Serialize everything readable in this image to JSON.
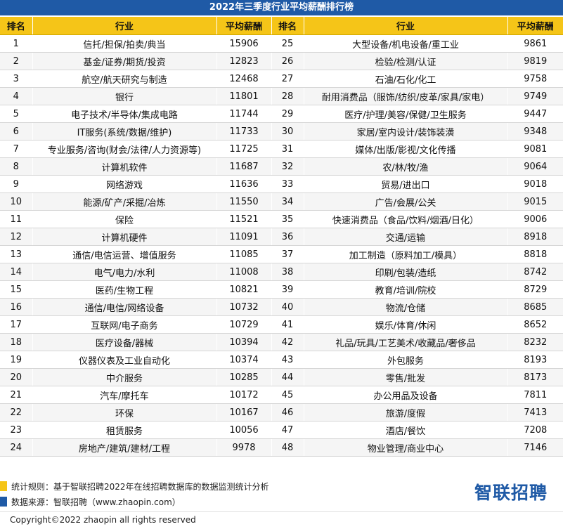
{
  "title": "2022年三季度行业平均薪酬排行榜",
  "headers": {
    "rank": "排名",
    "industry": "行业",
    "salary": "平均薪酬"
  },
  "left": [
    {
      "rank": "1",
      "industry": "信托/担保/拍卖/典当",
      "salary": "15906"
    },
    {
      "rank": "2",
      "industry": "基金/证券/期货/投资",
      "salary": "12823"
    },
    {
      "rank": "3",
      "industry": "航空/航天研究与制造",
      "salary": "12468"
    },
    {
      "rank": "4",
      "industry": "银行",
      "salary": "11801"
    },
    {
      "rank": "5",
      "industry": "电子技术/半导体/集成电路",
      "salary": "11744"
    },
    {
      "rank": "6",
      "industry": "IT服务(系统/数据/维护)",
      "salary": "11733"
    },
    {
      "rank": "7",
      "industry": "专业服务/咨询(财会/法律/人力资源等)",
      "salary": "11725"
    },
    {
      "rank": "8",
      "industry": "计算机软件",
      "salary": "11687"
    },
    {
      "rank": "9",
      "industry": "网络游戏",
      "salary": "11636"
    },
    {
      "rank": "10",
      "industry": "能源/矿产/采掘/冶炼",
      "salary": "11550"
    },
    {
      "rank": "11",
      "industry": "保险",
      "salary": "11521"
    },
    {
      "rank": "12",
      "industry": "计算机硬件",
      "salary": "11091"
    },
    {
      "rank": "13",
      "industry": "通信/电信运营、增值服务",
      "salary": "11085"
    },
    {
      "rank": "14",
      "industry": "电气/电力/水利",
      "salary": "11008"
    },
    {
      "rank": "15",
      "industry": "医药/生物工程",
      "salary": "10821"
    },
    {
      "rank": "16",
      "industry": "通信/电信/网络设备",
      "salary": "10732"
    },
    {
      "rank": "17",
      "industry": "互联网/电子商务",
      "salary": "10729"
    },
    {
      "rank": "18",
      "industry": "医疗设备/器械",
      "salary": "10394"
    },
    {
      "rank": "19",
      "industry": "仪器仪表及工业自动化",
      "salary": "10374"
    },
    {
      "rank": "20",
      "industry": "中介服务",
      "salary": "10285"
    },
    {
      "rank": "21",
      "industry": "汽车/摩托车",
      "salary": "10172"
    },
    {
      "rank": "22",
      "industry": "环保",
      "salary": "10167"
    },
    {
      "rank": "23",
      "industry": "租赁服务",
      "salary": "10056"
    },
    {
      "rank": "24",
      "industry": "房地产/建筑/建材/工程",
      "salary": "9978"
    }
  ],
  "right": [
    {
      "rank": "25",
      "industry": "大型设备/机电设备/重工业",
      "salary": "9861"
    },
    {
      "rank": "26",
      "industry": "检验/检测/认证",
      "salary": "9819"
    },
    {
      "rank": "27",
      "industry": "石油/石化/化工",
      "salary": "9758"
    },
    {
      "rank": "28",
      "industry": "耐用消费品（服饰/纺织/皮革/家具/家电）",
      "salary": "9749"
    },
    {
      "rank": "29",
      "industry": "医疗/护理/美容/保健/卫生服务",
      "salary": "9447"
    },
    {
      "rank": "30",
      "industry": "家居/室内设计/装饰装潢",
      "salary": "9348"
    },
    {
      "rank": "31",
      "industry": "媒体/出版/影视/文化传播",
      "salary": "9081"
    },
    {
      "rank": "32",
      "industry": "农/林/牧/渔",
      "salary": "9064"
    },
    {
      "rank": "33",
      "industry": "贸易/进出口",
      "salary": "9018"
    },
    {
      "rank": "34",
      "industry": "广告/会展/公关",
      "salary": "9015"
    },
    {
      "rank": "35",
      "industry": "快速消费品（食品/饮料/烟酒/日化）",
      "salary": "9006"
    },
    {
      "rank": "36",
      "industry": "交通/运输",
      "salary": "8918"
    },
    {
      "rank": "37",
      "industry": "加工制造（原料加工/模具）",
      "salary": "8818"
    },
    {
      "rank": "38",
      "industry": "印刷/包装/造纸",
      "salary": "8742"
    },
    {
      "rank": "39",
      "industry": "教育/培训/院校",
      "salary": "8729"
    },
    {
      "rank": "40",
      "industry": "物流/仓储",
      "salary": "8685"
    },
    {
      "rank": "41",
      "industry": "娱乐/体育/休闲",
      "salary": "8652"
    },
    {
      "rank": "42",
      "industry": "礼品/玩具/工艺美术/收藏品/奢侈品",
      "salary": "8232"
    },
    {
      "rank": "43",
      "industry": "外包服务",
      "salary": "8193"
    },
    {
      "rank": "44",
      "industry": "零售/批发",
      "salary": "8173"
    },
    {
      "rank": "45",
      "industry": "办公用品及设备",
      "salary": "7811"
    },
    {
      "rank": "46",
      "industry": "旅游/度假",
      "salary": "7413"
    },
    {
      "rank": "47",
      "industry": "酒店/餐饮",
      "salary": "7208"
    },
    {
      "rank": "48",
      "industry": "物业管理/商业中心",
      "salary": "7146"
    }
  ],
  "footer": {
    "rule": "统计规则：基于智联招聘2022年在线招聘数据库的数据监测统计分析",
    "source": "数据来源：智联招聘（www.zhaopin.com）",
    "logo": "智联招聘",
    "copyright": "Copyright©2022 zhaopin all rights reserved"
  },
  "colors": {
    "header_bg": "#f5c518",
    "title_bg": "#1f5aa6",
    "brand": "#1f5aa6"
  }
}
